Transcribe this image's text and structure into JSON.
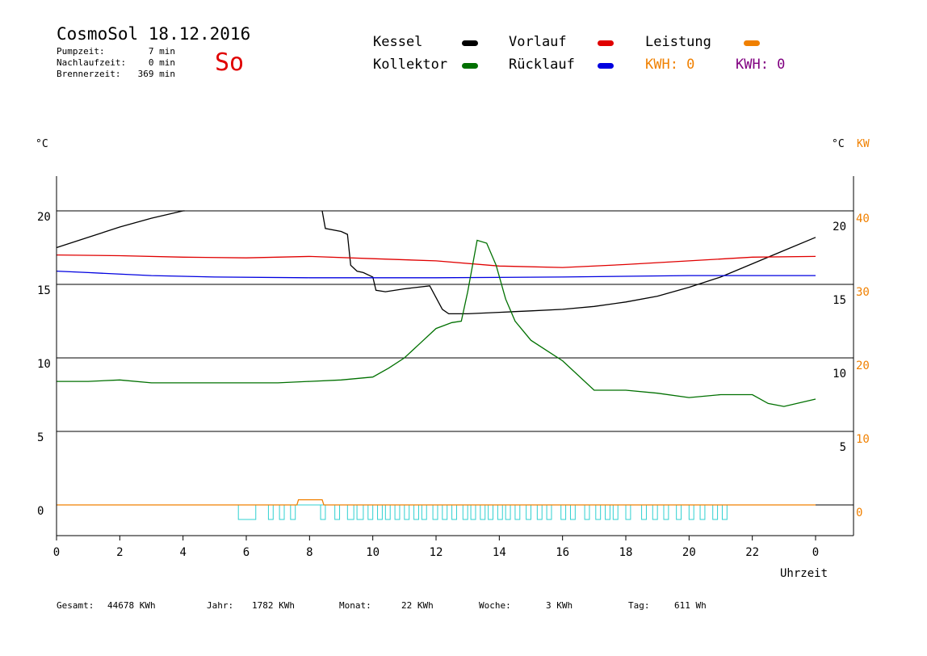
{
  "header": {
    "title": "CosmoSol 18.12.2016",
    "day": "So",
    "info": [
      {
        "label": "Pumpzeit:",
        "value": "7 min"
      },
      {
        "label": "Nachlaufzeit:",
        "value": "0 min"
      },
      {
        "label": "Brennerzeit:",
        "value": "369 min"
      }
    ]
  },
  "legend": {
    "kessel": "Kessel",
    "vorlauf": "Vorlauf",
    "leistung": "Leistung",
    "kollektor": "Kollektor",
    "ruecklauf": "Rücklauf",
    "kwh1": "KWH: 0",
    "kwh2": "KWH: 0"
  },
  "colors": {
    "kessel": "#000000",
    "vorlauf": "#e00000",
    "leistung": "#f08000",
    "kollektor": "#007000",
    "ruecklauf": "#0000e0",
    "pump": "#30d0d0",
    "kwh2": "#800080"
  },
  "axes": {
    "left_unit": "°C",
    "right_unit_c": "°C",
    "right_unit_kw": "KW",
    "xlabel": "Uhrzeit"
  },
  "totals": [
    {
      "label": "Gesamt:",
      "value": "44678 KWh"
    },
    {
      "label": "Jahr:",
      "value": "1782 KWh"
    },
    {
      "label": "Monat:",
      "value": "22 KWh"
    },
    {
      "label": "Woche:",
      "value": "3 KWh"
    },
    {
      "label": "Tag:",
      "value": "611 Wh"
    }
  ],
  "chart_data": {
    "type": "line",
    "title": "CosmoSol 18.12.2016",
    "xlabel": "Uhrzeit",
    "ylabel": "°C",
    "xlim": [
      0,
      24
    ],
    "ylim": [
      -2,
      22
    ],
    "x_tick_labels": [
      "0",
      "2",
      "4",
      "6",
      "8",
      "10",
      "12",
      "14",
      "16",
      "18",
      "20",
      "22",
      "0"
    ],
    "y_left_ticks": [
      "0",
      "5",
      "10",
      "15",
      "20"
    ],
    "y_right_c_ticks": [
      "5",
      "10",
      "15",
      "20"
    ],
    "y_right_kw_ticks": [
      "0",
      "10",
      "20",
      "30",
      "40"
    ],
    "grid": true,
    "series": [
      {
        "name": "Kessel",
        "color": "#000000",
        "x": [
          0,
          1,
          2,
          3,
          4,
          4.05
        ],
        "y": [
          17.5,
          18.2,
          18.9,
          19.5,
          20,
          20
        ]
      },
      {
        "name": "Kessel",
        "color": "#000000",
        "x": [
          8.4,
          8.5,
          9,
          9.2,
          9.3,
          9.5,
          9.7,
          10,
          10.1,
          10.4,
          11,
          11.8,
          12.2,
          12.4,
          13,
          14,
          15,
          16,
          17,
          18,
          19,
          20,
          21,
          22,
          23,
          24
        ],
        "y": [
          20,
          18.8,
          18.6,
          18.4,
          16.3,
          15.9,
          15.8,
          15.5,
          14.6,
          14.5,
          14.7,
          14.9,
          13.3,
          13.0,
          13.0,
          13.1,
          13.2,
          13.3,
          13.5,
          13.8,
          14.2,
          14.8,
          15.5,
          16.4,
          17.3,
          18.2
        ]
      },
      {
        "name": "Vorlauf",
        "color": "#e00000",
        "x": [
          0,
          2,
          4,
          6,
          8,
          10,
          12,
          14,
          16,
          18,
          20,
          22,
          24
        ],
        "y": [
          17,
          16.95,
          16.85,
          16.8,
          16.9,
          16.75,
          16.6,
          16.25,
          16.15,
          16.35,
          16.6,
          16.85,
          16.9
        ]
      },
      {
        "name": "Rücklauf",
        "color": "#0000e0",
        "x": [
          0,
          1,
          3,
          5,
          8,
          12,
          16,
          20,
          24
        ],
        "y": [
          15.9,
          15.8,
          15.6,
          15.5,
          15.45,
          15.45,
          15.5,
          15.6,
          15.6
        ]
      },
      {
        "name": "Kollektor",
        "color": "#007000",
        "x": [
          0,
          1,
          2,
          3,
          4,
          5,
          6,
          7,
          8,
          9,
          10,
          10.5,
          11,
          11.5,
          12,
          12.5,
          12.8,
          13.0,
          13.3,
          13.6,
          13.9,
          14.2,
          14.5,
          15,
          15.5,
          16,
          17,
          18,
          19,
          20,
          21,
          22,
          22.5,
          23,
          24
        ],
        "y": [
          8.4,
          8.4,
          8.5,
          8.3,
          8.3,
          8.3,
          8.3,
          8.3,
          8.4,
          8.5,
          8.7,
          9.3,
          10.0,
          11.0,
          12.0,
          12.4,
          12.5,
          14.5,
          18.0,
          17.8,
          16.3,
          14.0,
          12.5,
          11.2,
          10.5,
          9.8,
          7.8,
          7.8,
          7.6,
          7.3,
          7.5,
          7.5,
          6.9,
          6.7,
          7.2
        ]
      },
      {
        "name": "Leistung",
        "color": "#f08000",
        "x": [
          0,
          7.6,
          7.65,
          8.4,
          8.45,
          24
        ],
        "y": [
          0,
          0,
          0.35,
          0.35,
          0,
          0
        ]
      }
    ],
    "pump_on_intervals": [
      [
        5.75,
        6.3
      ],
      [
        6.7,
        6.85
      ],
      [
        7.05,
        7.2
      ],
      [
        7.4,
        7.55
      ],
      [
        8.35,
        8.5
      ],
      [
        8.8,
        8.95
      ],
      [
        9.2,
        9.4
      ],
      [
        9.5,
        9.7
      ],
      [
        9.85,
        10.0
      ],
      [
        10.15,
        10.3
      ],
      [
        10.4,
        10.55
      ],
      [
        10.7,
        10.85
      ],
      [
        11.0,
        11.15
      ],
      [
        11.3,
        11.45
      ],
      [
        11.55,
        11.7
      ],
      [
        11.9,
        12.05
      ],
      [
        12.2,
        12.35
      ],
      [
        12.5,
        12.65
      ],
      [
        12.85,
        13.0
      ],
      [
        13.1,
        13.25
      ],
      [
        13.4,
        13.55
      ],
      [
        13.65,
        13.8
      ],
      [
        13.95,
        14.1
      ],
      [
        14.2,
        14.35
      ],
      [
        14.5,
        14.65
      ],
      [
        14.85,
        15.0
      ],
      [
        15.2,
        15.35
      ],
      [
        15.5,
        15.65
      ],
      [
        15.95,
        16.1
      ],
      [
        16.25,
        16.4
      ],
      [
        16.7,
        16.85
      ],
      [
        17.05,
        17.2
      ],
      [
        17.35,
        17.5
      ],
      [
        17.6,
        17.75
      ],
      [
        18.0,
        18.15
      ],
      [
        18.5,
        18.65
      ],
      [
        18.85,
        19.0
      ],
      [
        19.2,
        19.35
      ],
      [
        19.6,
        19.75
      ],
      [
        20.0,
        20.15
      ],
      [
        20.35,
        20.5
      ],
      [
        20.75,
        20.9
      ],
      [
        21.05,
        21.2
      ]
    ]
  }
}
